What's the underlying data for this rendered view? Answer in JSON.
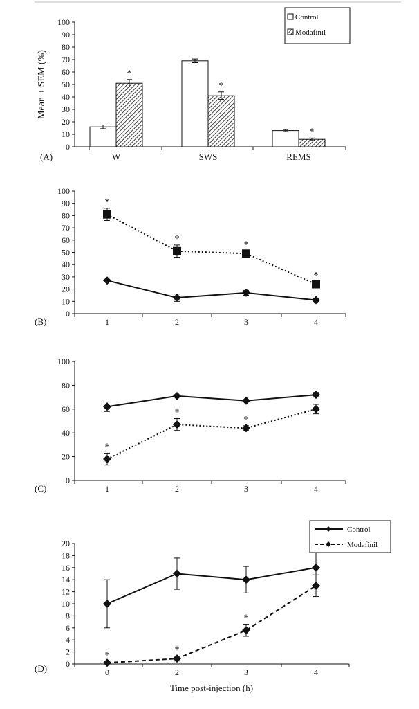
{
  "chart_data": [
    {
      "panel": "(A)",
      "type": "bar",
      "categories": [
        "W",
        "SWS",
        "REMS"
      ],
      "series": [
        {
          "name": "Control",
          "values": [
            16,
            69,
            13
          ],
          "sem": [
            1.5,
            1.5,
            0.8
          ]
        },
        {
          "name": "Modafinil",
          "values": [
            51,
            41,
            6
          ],
          "sem": [
            3,
            3,
            1
          ]
        }
      ],
      "significance": [
        "*",
        "*",
        "*"
      ],
      "ylabel": "Mean ± SEM (%)",
      "ylim": [
        0,
        100
      ],
      "yticks": [
        0,
        10,
        20,
        30,
        40,
        50,
        60,
        70,
        80,
        90,
        100
      ],
      "legend": [
        "Control",
        "Modafinil"
      ],
      "legend_position": "top-right"
    },
    {
      "panel": "(B)",
      "type": "line",
      "x": [
        1,
        2,
        3,
        4
      ],
      "series": [
        {
          "name": "Control",
          "values": [
            27,
            13,
            17,
            11
          ],
          "sem": [
            1,
            3,
            2,
            1
          ],
          "style": "solid",
          "marker": "diamond"
        },
        {
          "name": "Modafinil",
          "values": [
            81,
            51,
            49,
            24
          ],
          "sem": [
            5,
            5,
            2,
            2
          ],
          "style": "dotted",
          "marker": "square",
          "significance": [
            "*",
            "*",
            "*",
            "*"
          ]
        }
      ],
      "ylim": [
        0,
        100
      ],
      "yticks": [
        0,
        10,
        20,
        30,
        40,
        50,
        60,
        70,
        80,
        90,
        100
      ],
      "xticks": [
        "1",
        "2",
        "3",
        "4"
      ]
    },
    {
      "panel": "(C)",
      "type": "line",
      "x": [
        1,
        2,
        3,
        4
      ],
      "series": [
        {
          "name": "Control",
          "values": [
            62,
            71,
            67,
            72
          ],
          "sem": [
            4,
            1,
            1,
            2
          ],
          "style": "solid",
          "marker": "diamond"
        },
        {
          "name": "Modafinil",
          "values": [
            18,
            47,
            44,
            60
          ],
          "sem": [
            5,
            5,
            2,
            4
          ],
          "style": "dotted",
          "marker": "diamond",
          "significance": [
            "*",
            "*",
            "*",
            ""
          ]
        }
      ],
      "ylim": [
        0,
        100
      ],
      "yticks": [
        0,
        20,
        40,
        60,
        80,
        100
      ],
      "xticks": [
        "1",
        "2",
        "3",
        "4"
      ]
    },
    {
      "panel": "(D)",
      "type": "line",
      "x": [
        0,
        2,
        3,
        4
      ],
      "series": [
        {
          "name": "Control",
          "values": [
            10,
            15,
            14,
            16
          ],
          "sem": [
            4,
            2.6,
            2.2,
            3
          ],
          "style": "solid",
          "marker": "diamond"
        },
        {
          "name": "Modafinil",
          "values": [
            0.2,
            0.9,
            5.6,
            13
          ],
          "sem": [
            0.2,
            0.4,
            1,
            1.8
          ],
          "style": "dashed",
          "marker": "diamond",
          "significance": [
            "*",
            "*",
            "*",
            ""
          ]
        }
      ],
      "ylim": [
        0,
        20
      ],
      "yticks": [
        0,
        2,
        4,
        6,
        8,
        10,
        12,
        14,
        16,
        18,
        20
      ],
      "xticks": [
        "0",
        "2",
        "3",
        "4"
      ],
      "xlabel": "Time post-injection (h)",
      "legend": [
        "Control",
        "Modafinil"
      ],
      "legend_position": "top-right"
    }
  ]
}
